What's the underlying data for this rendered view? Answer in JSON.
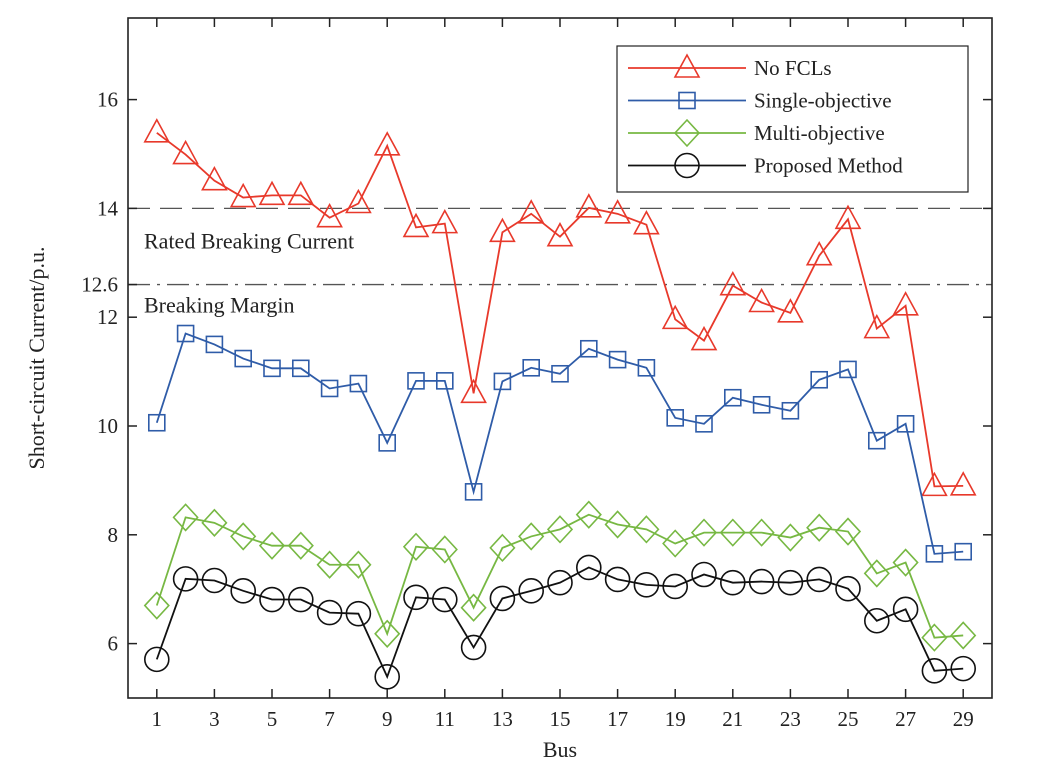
{
  "chart_data": {
    "type": "line",
    "title": "",
    "xlabel": "Bus",
    "ylabel": "Short-circuit Current/p.u.",
    "xlim": [
      0,
      30
    ],
    "ylim": [
      5,
      17.5
    ],
    "xticks": [
      1,
      3,
      5,
      7,
      9,
      11,
      13,
      15,
      17,
      19,
      21,
      23,
      25,
      27,
      29
    ],
    "yticks": [
      6,
      8,
      10,
      12,
      14,
      16
    ],
    "extra_ytick": "12.6",
    "grid": false,
    "legend_position": "top-right",
    "x": [
      1,
      2,
      3,
      4,
      5,
      6,
      7,
      8,
      9,
      10,
      11,
      12,
      13,
      14,
      15,
      16,
      17,
      18,
      19,
      20,
      21,
      22,
      23,
      24,
      25,
      26,
      27,
      28,
      29
    ],
    "series": [
      {
        "name": "No FCLs",
        "color": "#e8392b",
        "marker": "triangle",
        "values": [
          15.39,
          14.99,
          14.51,
          14.2,
          14.24,
          14.24,
          13.83,
          14.09,
          15.15,
          13.65,
          13.72,
          10.6,
          13.56,
          13.9,
          13.48,
          14.01,
          13.9,
          13.7,
          11.96,
          11.57,
          12.58,
          12.27,
          12.08,
          13.13,
          13.8,
          11.79,
          12.21,
          8.89,
          8.9
        ]
      },
      {
        "name": "Single-objective",
        "color": "#2f5ca8",
        "marker": "square",
        "values": [
          10.06,
          11.7,
          11.5,
          11.24,
          11.06,
          11.06,
          10.69,
          10.78,
          9.69,
          10.83,
          10.83,
          8.79,
          10.82,
          11.07,
          10.96,
          11.42,
          11.22,
          11.07,
          10.15,
          10.04,
          10.52,
          10.39,
          10.28,
          10.85,
          11.04,
          9.73,
          10.04,
          7.65,
          7.69
        ]
      },
      {
        "name": "Multi-objective",
        "color": "#77b843",
        "marker": "diamond",
        "values": [
          6.7,
          8.32,
          8.22,
          7.97,
          7.8,
          7.8,
          7.45,
          7.45,
          6.18,
          7.78,
          7.73,
          6.66,
          7.76,
          7.97,
          8.1,
          8.37,
          8.19,
          8.1,
          7.84,
          8.04,
          8.04,
          8.04,
          7.95,
          8.13,
          8.06,
          7.29,
          7.49,
          6.11,
          6.15
        ]
      },
      {
        "name": "Proposed Method",
        "color": "#111111",
        "marker": "circle",
        "values": [
          5.71,
          7.19,
          7.16,
          6.97,
          6.81,
          6.81,
          6.57,
          6.55,
          5.39,
          6.85,
          6.81,
          5.93,
          6.83,
          6.97,
          7.12,
          7.4,
          7.18,
          7.08,
          7.05,
          7.27,
          7.12,
          7.14,
          7.12,
          7.18,
          7.01,
          6.42,
          6.63,
          5.5,
          5.54
        ]
      }
    ],
    "reference_lines": [
      {
        "value": 14,
        "label": "Rated Breaking Current",
        "style": "dashed"
      },
      {
        "value": 12.6,
        "label": "Breaking Margin",
        "style": "dashdot"
      }
    ]
  }
}
